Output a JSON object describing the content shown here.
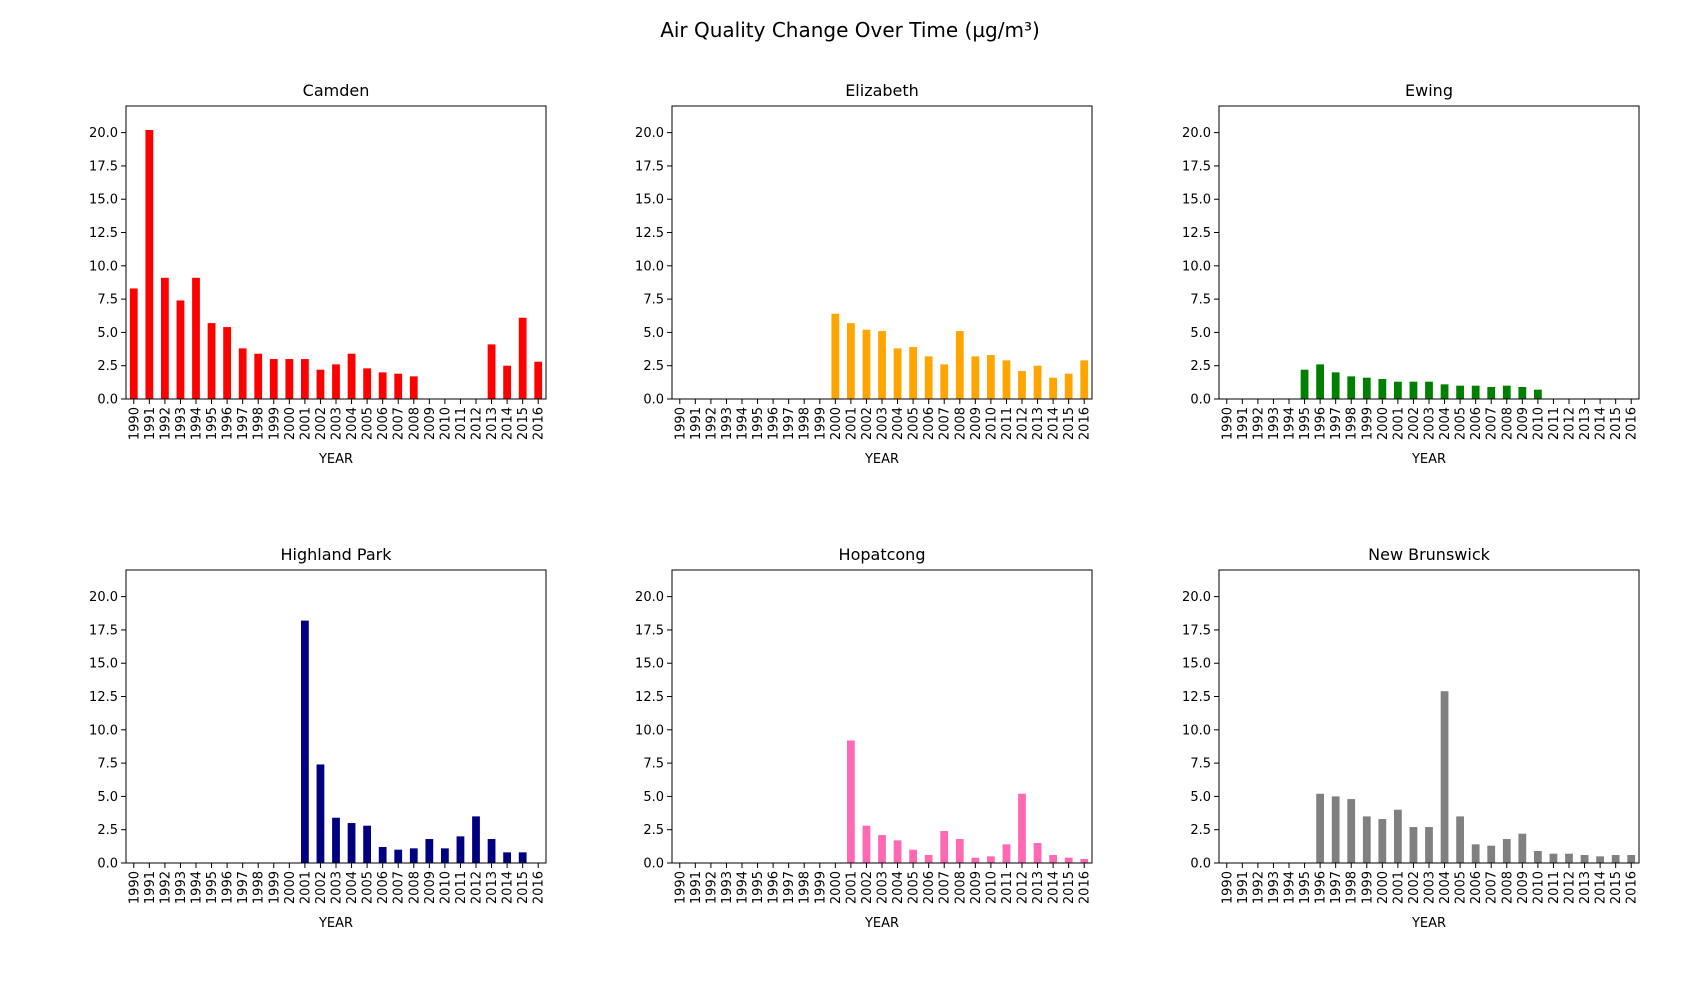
{
  "figure": {
    "suptitle": "Air Quality Change Over Time (µg/m³)"
  },
  "chart_data": [
    {
      "type": "bar",
      "title": "Camden",
      "xlabel": "YEAR",
      "ylabel": "",
      "ylim": [
        0,
        22
      ],
      "yticks": [
        "0.0",
        "2.5",
        "5.0",
        "7.5",
        "10.0",
        "12.5",
        "15.0",
        "17.5",
        "20.0"
      ],
      "color": "#ff0000",
      "categories": [
        "1990",
        "1991",
        "1992",
        "1993",
        "1994",
        "1995",
        "1996",
        "1997",
        "1998",
        "1999",
        "2000",
        "2001",
        "2002",
        "2003",
        "2004",
        "2005",
        "2006",
        "2007",
        "2008",
        "2009",
        "2010",
        "2011",
        "2012",
        "2013",
        "2014",
        "2015",
        "2016"
      ],
      "values": [
        8.3,
        20.2,
        9.1,
        7.4,
        9.1,
        5.7,
        5.4,
        3.8,
        3.4,
        3.0,
        3.0,
        3.0,
        2.2,
        2.6,
        3.4,
        2.3,
        2.0,
        1.9,
        1.7,
        null,
        null,
        null,
        null,
        4.1,
        2.5,
        6.1,
        2.8
      ]
    },
    {
      "type": "bar",
      "title": "Elizabeth",
      "xlabel": "YEAR",
      "ylabel": "",
      "ylim": [
        0,
        22
      ],
      "yticks": [
        "0.0",
        "2.5",
        "5.0",
        "7.5",
        "10.0",
        "12.5",
        "15.0",
        "17.5",
        "20.0"
      ],
      "color": "#ffa500",
      "categories": [
        "1990",
        "1991",
        "1992",
        "1993",
        "1994",
        "1995",
        "1996",
        "1997",
        "1998",
        "1999",
        "2000",
        "2001",
        "2002",
        "2003",
        "2004",
        "2005",
        "2006",
        "2007",
        "2008",
        "2009",
        "2010",
        "2011",
        "2012",
        "2013",
        "2014",
        "2015",
        "2016"
      ],
      "values": [
        null,
        null,
        null,
        null,
        null,
        null,
        null,
        null,
        null,
        null,
        6.4,
        5.7,
        5.2,
        5.1,
        3.8,
        3.9,
        3.2,
        2.6,
        5.1,
        3.2,
        3.3,
        2.9,
        2.1,
        2.5,
        1.6,
        1.9,
        2.9
      ]
    },
    {
      "type": "bar",
      "title": "Ewing",
      "xlabel": "YEAR",
      "ylabel": "",
      "ylim": [
        0,
        22
      ],
      "yticks": [
        "0.0",
        "2.5",
        "5.0",
        "7.5",
        "10.0",
        "12.5",
        "15.0",
        "17.5",
        "20.0"
      ],
      "color": "#008000",
      "categories": [
        "1990",
        "1991",
        "1992",
        "1993",
        "1994",
        "1995",
        "1996",
        "1997",
        "1998",
        "1999",
        "2000",
        "2001",
        "2002",
        "2003",
        "2004",
        "2005",
        "2006",
        "2007",
        "2008",
        "2009",
        "2010",
        "2011",
        "2012",
        "2013",
        "2014",
        "2015",
        "2016"
      ],
      "values": [
        null,
        null,
        null,
        null,
        null,
        2.2,
        2.6,
        2.0,
        1.7,
        1.6,
        1.5,
        1.3,
        1.3,
        1.3,
        1.1,
        1.0,
        1.0,
        0.9,
        1.0,
        0.9,
        0.7,
        null,
        null,
        null,
        null,
        null,
        null
      ]
    },
    {
      "type": "bar",
      "title": "Highland Park",
      "xlabel": "YEAR",
      "ylabel": "",
      "ylim": [
        0,
        22
      ],
      "yticks": [
        "0.0",
        "2.5",
        "5.0",
        "7.5",
        "10.0",
        "12.5",
        "15.0",
        "17.5",
        "20.0"
      ],
      "color": "#000080",
      "categories": [
        "1990",
        "1991",
        "1992",
        "1993",
        "1994",
        "1995",
        "1996",
        "1997",
        "1998",
        "1999",
        "2000",
        "2001",
        "2002",
        "2003",
        "2004",
        "2005",
        "2006",
        "2007",
        "2008",
        "2009",
        "2010",
        "2011",
        "2012",
        "2013",
        "2014",
        "2015",
        "2016"
      ],
      "values": [
        null,
        null,
        null,
        null,
        null,
        null,
        null,
        null,
        null,
        null,
        null,
        18.2,
        7.4,
        3.4,
        3.0,
        2.8,
        1.2,
        1.0,
        1.1,
        1.8,
        1.1,
        2.0,
        3.5,
        1.8,
        0.8,
        0.8,
        null
      ]
    },
    {
      "type": "bar",
      "title": "Hopatcong",
      "xlabel": "YEAR",
      "ylabel": "",
      "ylim": [
        0,
        22
      ],
      "yticks": [
        "0.0",
        "2.5",
        "5.0",
        "7.5",
        "10.0",
        "12.5",
        "15.0",
        "17.5",
        "20.0"
      ],
      "color": "#ff69b4",
      "categories": [
        "1990",
        "1991",
        "1992",
        "1993",
        "1994",
        "1995",
        "1996",
        "1997",
        "1998",
        "1999",
        "2000",
        "2001",
        "2002",
        "2003",
        "2004",
        "2005",
        "2006",
        "2007",
        "2008",
        "2009",
        "2010",
        "2011",
        "2012",
        "2013",
        "2014",
        "2015",
        "2016"
      ],
      "values": [
        null,
        null,
        null,
        null,
        null,
        null,
        null,
        null,
        null,
        null,
        null,
        9.2,
        2.8,
        2.1,
        1.7,
        1.0,
        0.6,
        2.4,
        1.8,
        0.4,
        0.5,
        1.4,
        5.2,
        1.5,
        0.6,
        0.4,
        0.3
      ]
    },
    {
      "type": "bar",
      "title": "New Brunswick",
      "xlabel": "YEAR",
      "ylabel": "",
      "ylim": [
        0,
        22
      ],
      "yticks": [
        "0.0",
        "2.5",
        "5.0",
        "7.5",
        "10.0",
        "12.5",
        "15.0",
        "17.5",
        "20.0"
      ],
      "color": "#808080",
      "categories": [
        "1990",
        "1991",
        "1992",
        "1993",
        "1994",
        "1995",
        "1996",
        "1997",
        "1998",
        "1999",
        "2000",
        "2001",
        "2002",
        "2003",
        "2004",
        "2005",
        "2006",
        "2007",
        "2008",
        "2009",
        "2010",
        "2011",
        "2012",
        "2013",
        "2014",
        "2015",
        "2016"
      ],
      "values": [
        null,
        null,
        null,
        null,
        null,
        null,
        5.2,
        5.0,
        4.8,
        3.5,
        3.3,
        4.0,
        2.7,
        2.7,
        12.9,
        3.5,
        1.4,
        1.3,
        1.8,
        2.2,
        0.9,
        0.7,
        0.7,
        0.6,
        0.5,
        0.6,
        0.6
      ]
    }
  ]
}
